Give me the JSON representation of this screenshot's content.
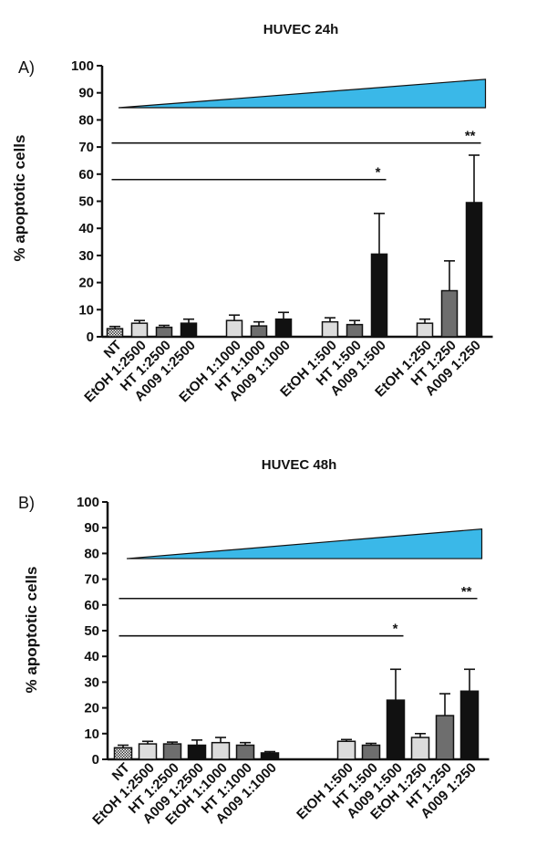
{
  "chart_data": [
    {
      "type": "bar",
      "panel_label": "A)",
      "title": "HUVEC 24h",
      "xlabel": "",
      "ylabel": "% apoptotic cells",
      "ylim": [
        0,
        100
      ],
      "yticks": [
        "0",
        "10",
        "20",
        "30",
        "40",
        "50",
        "60",
        "70",
        "80",
        "90",
        "100"
      ],
      "categories": [
        "NT",
        "EtOH 1:2500",
        "HT 1:2500",
        "A009 1:2500",
        "EtOH 1:1000",
        "HT 1:1000",
        "A009 1:1000",
        "EtOH 1:500",
        "HT 1:500",
        "A009 1:500",
        "EtOH 1:250",
        "HT 1:250",
        "A009 1:250"
      ],
      "groups": [
        [
          0,
          1,
          2,
          3
        ],
        [
          4,
          5,
          6
        ],
        [
          7,
          8,
          9
        ],
        [
          10,
          11,
          12
        ]
      ],
      "values": [
        3,
        5,
        3.5,
        5,
        6,
        4,
        6.5,
        5.5,
        4.5,
        30.5,
        5,
        17,
        49.5
      ],
      "errors": [
        0.8,
        1,
        0.7,
        1.5,
        2,
        1.5,
        2.5,
        1.5,
        1.5,
        15,
        1.5,
        11,
        17.5
      ],
      "fills": [
        "hatched",
        "#dcdcdc",
        "#6e6e6e",
        "#111111",
        "#dcdcdc",
        "#6e6e6e",
        "#111111",
        "#dcdcdc",
        "#6e6e6e",
        "#111111",
        "#dcdcdc",
        "#6e6e6e",
        "#111111"
      ],
      "gradient_wedge": {
        "low": 84.5,
        "high": 95,
        "from_category": 0,
        "to_category": 12,
        "color": "#3ab8e8"
      },
      "significance": [
        {
          "label": "*",
          "y": 58,
          "from": 0,
          "to": 9
        },
        {
          "label": "**",
          "y": 71.5,
          "from": 0,
          "to": 12
        }
      ]
    },
    {
      "type": "bar",
      "panel_label": "B)",
      "title": "HUVEC 48h",
      "xlabel": "",
      "ylabel": "% apoptotic cells",
      "ylim": [
        0,
        100
      ],
      "yticks": [
        "0",
        "10",
        "20",
        "30",
        "40",
        "50",
        "60",
        "70",
        "80",
        "90",
        "100"
      ],
      "categories": [
        "NT",
        "EtOH 1:2500",
        "HT 1:2500",
        "A009 1:2500",
        "EtOH 1:1000",
        "HT 1:1000",
        "A009 1:1000",
        "EtOH 1:500",
        "HT 1:500",
        "A009 1:500",
        "EtOH 1:250",
        "HT 1:250",
        "A009 1:250"
      ],
      "groups": [
        [
          0,
          1,
          2,
          3
        ],
        [
          4,
          5,
          6
        ],
        [
          7,
          8,
          9
        ],
        [
          10,
          11,
          12
        ]
      ],
      "values": [
        4.5,
        6,
        6,
        5.5,
        6.5,
        5.5,
        2.5,
        7,
        5.5,
        23,
        8.5,
        17,
        26.5
      ],
      "errors": [
        1,
        1,
        0.7,
        2,
        2,
        1,
        0.5,
        0.7,
        0.7,
        12,
        1.5,
        8.5,
        8.5
      ],
      "fills": [
        "hatched",
        "#dcdcdc",
        "#6e6e6e",
        "#111111",
        "#dcdcdc",
        "#6e6e6e",
        "#111111",
        "#dcdcdc",
        "#6e6e6e",
        "#111111",
        "#dcdcdc",
        "#6e6e6e",
        "#111111"
      ],
      "gradient_wedge": {
        "low": 78,
        "high": 89.5,
        "from_category": 0,
        "to_category": 12,
        "color": "#3ab8e8"
      },
      "significance": [
        {
          "label": "*",
          "y": 48,
          "from": 0,
          "to": 9
        },
        {
          "label": "**",
          "y": 62.5,
          "from": 0,
          "to": 12
        }
      ]
    }
  ]
}
